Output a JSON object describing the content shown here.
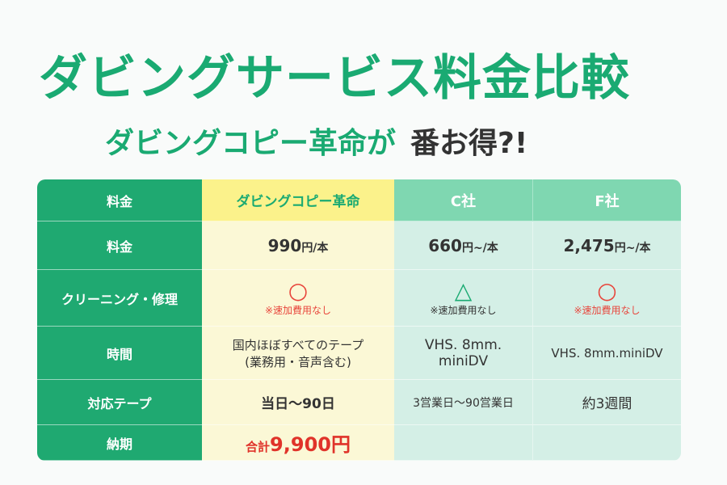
{
  "title": "ダビングサービス料金比較",
  "subtitle": {
    "green": "ダビングコピー革命が",
    "dark": "番お得?!"
  },
  "table": {
    "header": {
      "label": "料金",
      "main": "ダビングコピー革命",
      "c": "C社",
      "f": "F社"
    },
    "rows": {
      "price": {
        "label": "料金",
        "main": {
          "num": "990",
          "unit": "円/本"
        },
        "c": {
          "num": "660",
          "unit": "円~/本"
        },
        "f": {
          "num": "2,475",
          "unit": "円~/本"
        }
      },
      "cleaning": {
        "label": "クリーニング・修理",
        "main": {
          "mark": "○",
          "note": "※速加費用なし"
        },
        "c": {
          "mark": "△",
          "note": "※速加費用なし"
        },
        "f": {
          "mark": "○",
          "note": "※速加費用なし"
        }
      },
      "time": {
        "label": "時間",
        "main": [
          "国内ほぼすべてのテープ",
          "(業務用・音声含む)"
        ],
        "c": [
          "VHS. 8mm.",
          "miniDV"
        ],
        "f": "VHS. 8mm.miniDV"
      },
      "tape": {
        "label": "対応テープ",
        "main": "当日〜90日",
        "c": "3営業日〜90営業日",
        "f": "約3週間"
      },
      "delivery": {
        "label": "納期",
        "main": {
          "prefix": "合計",
          "num": "9,900円"
        },
        "c": "",
        "f": ""
      }
    }
  },
  "colors": {
    "brand_green": "#1aaa72",
    "label_green": "#1fa971",
    "header_yellow": "#fbf28b",
    "main_col_bg": "#fbf8d6",
    "competitor_bg": "#d4efe6",
    "accent_red": "#e0332a"
  }
}
